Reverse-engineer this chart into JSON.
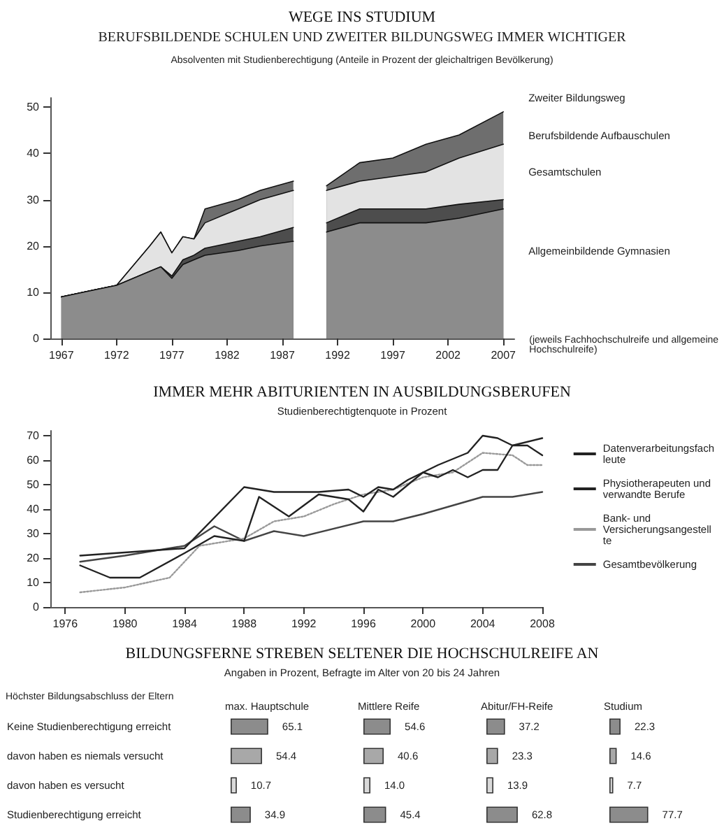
{
  "chart_data": [
    {
      "type": "area",
      "title": "WEGE INS STUDIUM",
      "subtitle": "BERUFSBILDENDE SCHULEN UND ZWEITER BILDUNGSWEG IMMER WICHTIGER",
      "annotations": [
        "Absolventen mit Studienberechtigung (Anteile in Prozent der gleichaltrigen Bevölkerung)",
        "(jeweils Fachhochschulreife und allgemeine Hochschulreife)"
      ],
      "stacked": true,
      "marker": "none",
      "legend": false,
      "x": [
        1967,
        1970,
        1972,
        1975,
        1976,
        1977,
        1978,
        1979,
        1980,
        1983,
        1985,
        1988,
        1989,
        1991,
        1994,
        1997,
        2000,
        2003,
        2007
      ],
      "series": [
        {
          "name": "Allgemeinbildende Gymnasien",
          "color": "#8c8c8c",
          "values": [
            9,
            10.5,
            11.5,
            14.5,
            15.5,
            13,
            16,
            17,
            18,
            19,
            20,
            21,
            null,
            23,
            25,
            25,
            25,
            26,
            28
          ]
        },
        {
          "name": "Gesamtschulen",
          "color": "#4d4d4d",
          "values": [
            0,
            0,
            0,
            0,
            0,
            0.5,
            1,
            1,
            1.5,
            2,
            2,
            3,
            null,
            2,
            3,
            3,
            3,
            3,
            2
          ]
        },
        {
          "name": "Berufsbildende Aufbauschulen",
          "color": "#e3e3e3",
          "values": [
            0,
            0,
            0,
            5.5,
            7.5,
            5,
            5,
            3.5,
            5.5,
            7,
            8,
            8,
            null,
            7,
            6,
            7,
            8,
            10,
            12
          ]
        },
        {
          "name": "Zweiter Bildungsweg",
          "color": "#6e6e6e",
          "values": [
            0,
            0,
            0,
            0,
            0,
            0,
            0,
            0,
            3,
            2,
            2,
            2,
            null,
            1,
            4,
            4,
            6,
            5,
            7
          ]
        }
      ],
      "xlim": [
        1966,
        2008
      ],
      "xticks": [
        1967,
        1972,
        1977,
        1982,
        1987,
        1992,
        1997,
        2002,
        2007
      ],
      "ylim": [
        0,
        52
      ],
      "yticks": [
        0,
        10,
        20,
        30,
        40,
        50
      ]
    },
    {
      "type": "line",
      "title": "IMMER MEHR ABITURIENTEN IN AUSBILDUNGSBERUFEN",
      "subtitle": "Studienberechtigtenquote in Prozent",
      "marker": "none",
      "legend": "right",
      "series": [
        {
          "name": "Datenverarbeitungsfachleute",
          "color": "#222222",
          "line_style": "solid",
          "x": [
            1977,
            1984,
            1988,
            1990,
            1993,
            1995,
            1996,
            1997,
            1998,
            1999,
            2000,
            2001,
            2003,
            2004,
            2005,
            2006,
            2007,
            2008
          ],
          "values": [
            21,
            24,
            49,
            47,
            47,
            48,
            45,
            49,
            48,
            52,
            55,
            58,
            63,
            70,
            69,
            66,
            66,
            62
          ]
        },
        {
          "name": "Physiotherapeuten und verwandte Berufe",
          "color": "#222222",
          "line_style": "solid",
          "x": [
            1977,
            1979,
            1981,
            1984,
            1986,
            1988,
            1989,
            1991,
            1993,
            1995,
            1996,
            1997,
            1998,
            1999,
            2000,
            2001,
            2002,
            2003,
            2004,
            2005,
            2006,
            2008
          ],
          "values": [
            17,
            12,
            12,
            22,
            29,
            27,
            45,
            37,
            46,
            44,
            39,
            48,
            45,
            50,
            55,
            53,
            56,
            53,
            56,
            56,
            66,
            69
          ]
        },
        {
          "name": "Bank- und Versicherungsangestellte",
          "color": "#999999",
          "line_style": "dotted",
          "x": [
            1977,
            1980,
            1983,
            1985,
            1988,
            1990,
            1992,
            1994,
            1996,
            1998,
            2000,
            2002,
            2004,
            2006,
            2007,
            2008
          ],
          "values": [
            6,
            8,
            12,
            25,
            28,
            35,
            37,
            42,
            46,
            48,
            53,
            55,
            63,
            62,
            58,
            58
          ]
        },
        {
          "name": "Gesamtbevölkerung",
          "color": "#444444",
          "line_style": "solid",
          "x": [
            1977,
            1980,
            1984,
            1986,
            1988,
            1990,
            1992,
            1996,
            1998,
            2000,
            2004,
            2006,
            2008
          ],
          "values": [
            18.5,
            21,
            25,
            33,
            27,
            31,
            29,
            35,
            35,
            38,
            45,
            45,
            47
          ]
        }
      ],
      "xlim": [
        1975,
        2008
      ],
      "xticks": [
        1976,
        1980,
        1984,
        1988,
        1992,
        1996,
        2000,
        2004,
        2008
      ],
      "ylim": [
        0,
        72
      ],
      "yticks": [
        0,
        10,
        20,
        30,
        40,
        50,
        60,
        70
      ]
    },
    {
      "type": "bar",
      "orientation": "horizontal",
      "title": "BILDUNGSFERNE STREBEN SELTENER DIE HOCHSCHULREIFE AN",
      "subtitle": "Angaben in Prozent, Befragte im Alter von 20 bis 24 Jahren",
      "annotations": [
        "Höchster Bildungsabschluss der Eltern"
      ],
      "xlabel": "max. Hauptschule",
      "tick_labels": "y",
      "categories": [
        "Keine Studienberechtigung erreicht",
        "davon haben es niemals versucht",
        "davon haben es versucht",
        "Studienberechtigung erreicht"
      ],
      "values": [
        65.1,
        54.4,
        10.7,
        34.9
      ],
      "value_labels": [
        "65.1",
        "54.4",
        "10.7",
        "34.9"
      ],
      "colors": [
        "#8c8c8c",
        "#a8a8a8",
        "#d9d9d9",
        "#8c8c8c"
      ]
    },
    {
      "type": "bar",
      "orientation": "horizontal",
      "xlabel": "Mittlere Reife",
      "tick_labels": false,
      "categories": [
        "Keine Studienberechtigung erreicht",
        "davon haben es niemals versucht",
        "davon haben es versucht",
        "Studienberechtigung erreicht"
      ],
      "values": [
        54.6,
        40.6,
        14.0,
        45.4
      ],
      "value_labels": [
        "54.6",
        "40.6",
        "14.0",
        "45.4"
      ],
      "colors": [
        "#8c8c8c",
        "#a8a8a8",
        "#d9d9d9",
        "#8c8c8c"
      ]
    },
    {
      "type": "bar",
      "orientation": "horizontal",
      "xlabel": "Abitur/FH-Reife",
      "tick_labels": false,
      "categories": [
        "Keine Studienberechtigung erreicht",
        "davon haben es niemals versucht",
        "davon haben es versucht",
        "Studienberechtigung erreicht"
      ],
      "values": [
        37.2,
        23.3,
        13.9,
        62.8
      ],
      "value_labels": [
        "37.2",
        "23.3",
        "13.9",
        "62.8"
      ],
      "colors": [
        "#8c8c8c",
        "#a8a8a8",
        "#d9d9d9",
        "#8c8c8c"
      ]
    },
    {
      "type": "bar",
      "orientation": "horizontal",
      "xlabel": "Studium",
      "tick_labels": false,
      "categories": [
        "Keine Studienberechtigung erreicht",
        "davon haben es niemals versucht",
        "davon haben es versucht",
        "Studienberechtigung erreicht"
      ],
      "values": [
        22.3,
        14.6,
        7.7,
        77.7
      ],
      "value_labels": [
        "22.3",
        "14.6",
        "7.7",
        "77.7"
      ],
      "colors": [
        "#8c8c8c",
        "#a8a8a8",
        "#d9d9d9",
        "#8c8c8c"
      ]
    }
  ]
}
